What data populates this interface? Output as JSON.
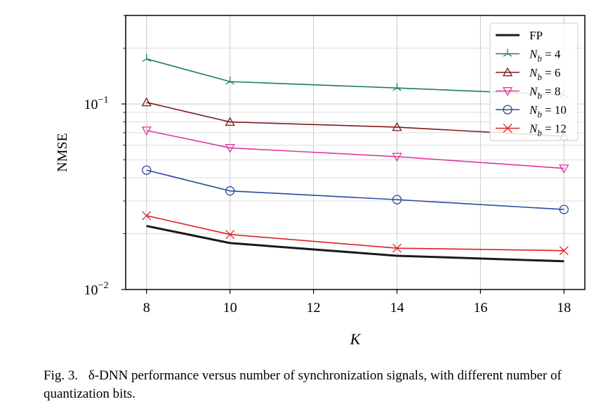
{
  "chart_data": {
    "type": "line",
    "xlabel": "K",
    "ylabel": "NMSE",
    "xlim": [
      7.5,
      18.5
    ],
    "ylim": [
      0.01,
      0.3
    ],
    "yscale": "log",
    "grid": true,
    "legend_position": "top-right",
    "x_ticks": [
      8,
      10,
      12,
      14,
      16,
      18
    ],
    "y_tick_labels": [
      {
        "value": 0.1,
        "base": "10",
        "exp": "−1"
      },
      {
        "value": 0.01,
        "base": "10",
        "exp": "−2"
      }
    ],
    "x": [
      8,
      10,
      14,
      18
    ],
    "series": [
      {
        "name": "FP",
        "name_main": "FP",
        "name_sub": "",
        "name_suffix": "",
        "color": "#1a1a1a",
        "marker": "none",
        "values": [
          0.022,
          0.0178,
          0.0152,
          0.0142
        ]
      },
      {
        "name": "N_b = 4",
        "name_main": "N",
        "name_sub": "b",
        "name_suffix": " = 4",
        "color": "#1a8050",
        "marker": "tri_up",
        "values": [
          0.175,
          0.132,
          0.122,
          0.112
        ]
      },
      {
        "name": "N_b = 6",
        "name_main": "N",
        "name_sub": "b",
        "name_suffix": " = 6",
        "color": "#7f1a1a",
        "marker": "triangle_up",
        "values": [
          0.102,
          0.08,
          0.075,
          0.067
        ]
      },
      {
        "name": "N_b = 8",
        "name_main": "N",
        "name_sub": "b",
        "name_suffix": " = 8",
        "color": "#e0379e",
        "marker": "triangle_down",
        "values": [
          0.072,
          0.058,
          0.052,
          0.045
        ]
      },
      {
        "name": "N_b = 10",
        "name_main": "N",
        "name_sub": "b",
        "name_suffix": " = 10",
        "color": "#2a4a9f",
        "marker": "circle",
        "values": [
          0.044,
          0.034,
          0.0305,
          0.027
        ]
      },
      {
        "name": "N_b = 12",
        "name_main": "N",
        "name_sub": "b",
        "name_suffix": " = 12",
        "color": "#e02020",
        "marker": "x",
        "values": [
          0.025,
          0.0198,
          0.0167,
          0.0162
        ]
      }
    ]
  },
  "caption": {
    "label": "Fig. 3.",
    "text": "δ-DNN performance versus number of synchronization signals, with different number of quantization bits."
  }
}
